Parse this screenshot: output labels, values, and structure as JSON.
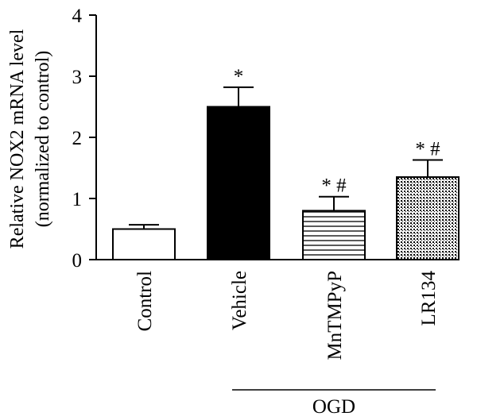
{
  "chart_data": {
    "type": "bar",
    "ylabel_line1": "Relative NOX2 mRNA level",
    "ylabel_line2": "(normalized to control)",
    "ylim": [
      0,
      4
    ],
    "yticks": [
      "0",
      "1",
      "2",
      "3",
      "4"
    ],
    "categories": [
      "Control",
      "Vehicle",
      "MnTMPyP",
      "LR134"
    ],
    "values": [
      0.5,
      2.5,
      0.8,
      1.35
    ],
    "errors": [
      0.07,
      0.32,
      0.23,
      0.28
    ],
    "annotations": [
      "",
      "*",
      "* #",
      "* #"
    ],
    "fills": [
      "white",
      "black",
      "horizontal-lines",
      "grid-pattern"
    ],
    "group": {
      "label": "OGD",
      "categories": [
        "Vehicle",
        "MnTMPyP",
        "LR134"
      ]
    }
  }
}
